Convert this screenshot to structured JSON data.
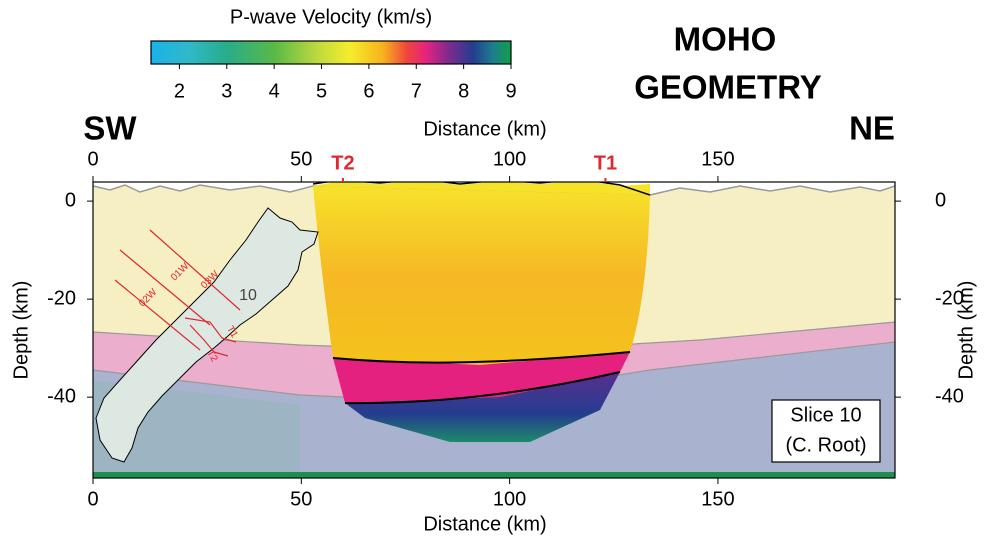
{
  "chart_data": {
    "type": "section",
    "title_lines": [
      "MOHO",
      "GEOMETRY"
    ],
    "colorbar": {
      "title": "P-wave Velocity (km/s)",
      "lim": [
        1.4,
        9
      ],
      "ticks": [
        2,
        3,
        4,
        5,
        6,
        7,
        8,
        9
      ],
      "colormap": [
        {
          "value": 1.4,
          "color": "#19b3ea"
        },
        {
          "value": 2.2,
          "color": "#2fb9c8"
        },
        {
          "value": 3,
          "color": "#27ad8a"
        },
        {
          "value": 4,
          "color": "#58b947"
        },
        {
          "value": 5,
          "color": "#c7dc3c"
        },
        {
          "value": 5.6,
          "color": "#f5ed2a"
        },
        {
          "value": 6.3,
          "color": "#f7b21c"
        },
        {
          "value": 6.8,
          "color": "#f0453d"
        },
        {
          "value": 7.2,
          "color": "#e6237e"
        },
        {
          "value": 7.7,
          "color": "#7a2b8e"
        },
        {
          "value": 8.2,
          "color": "#243d8f"
        },
        {
          "value": 8.6,
          "color": "#1e7b8e"
        },
        {
          "value": 9,
          "color": "#10a04a"
        }
      ]
    },
    "left_label": "SW",
    "right_label": "NE",
    "x_label": "Distance (km)",
    "y_label": "Depth (km)",
    "xlim": [
      0,
      192.5
    ],
    "ylim": [
      -56.5,
      3.9
    ],
    "xticks": [
      0,
      50,
      100,
      150
    ],
    "yticks": [
      0,
      -20,
      -40
    ],
    "markers": [
      {
        "label": "T2",
        "x": 60
      },
      {
        "label": "T1",
        "x": 123
      }
    ],
    "inset_box": [
      "Slice 10",
      "(C. Root)"
    ],
    "map_labels": [
      "01W",
      "02W",
      "03W",
      "10",
      "T1",
      "T2"
    ]
  }
}
